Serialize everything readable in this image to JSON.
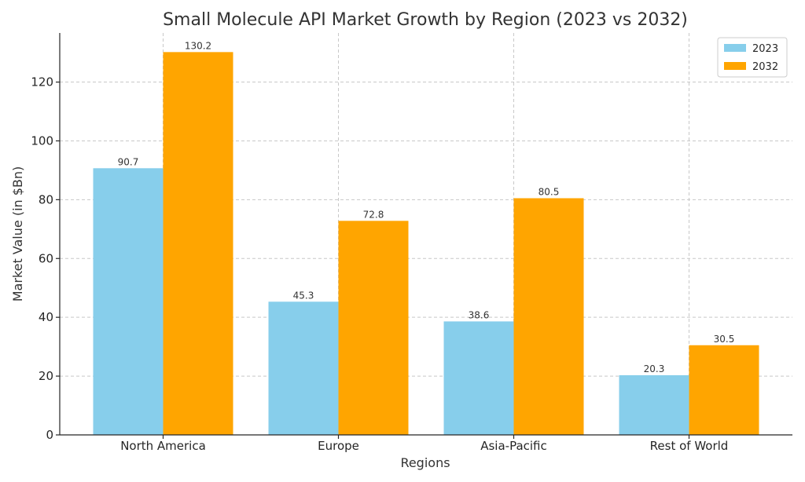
{
  "chart_data": {
    "type": "bar",
    "title": "Small Molecule API Market Growth by Region (2023 vs 2032)",
    "xlabel": "Regions",
    "ylabel": "Market Value (in $Bn)",
    "categories": [
      "North America",
      "Europe",
      "Asia-Pacific",
      "Rest of World"
    ],
    "series": [
      {
        "name": "2023",
        "values": [
          90.7,
          45.3,
          38.6,
          20.3
        ],
        "color": "#87CEEB"
      },
      {
        "name": "2032",
        "values": [
          130.2,
          72.8,
          80.5,
          30.5
        ],
        "color": "#FFA500"
      }
    ],
    "ylim": [
      0,
      136.7
    ],
    "yticks": [
      0,
      20,
      40,
      60,
      80,
      100,
      120
    ],
    "grid": true,
    "legend": "top-right",
    "data_labels": true
  }
}
